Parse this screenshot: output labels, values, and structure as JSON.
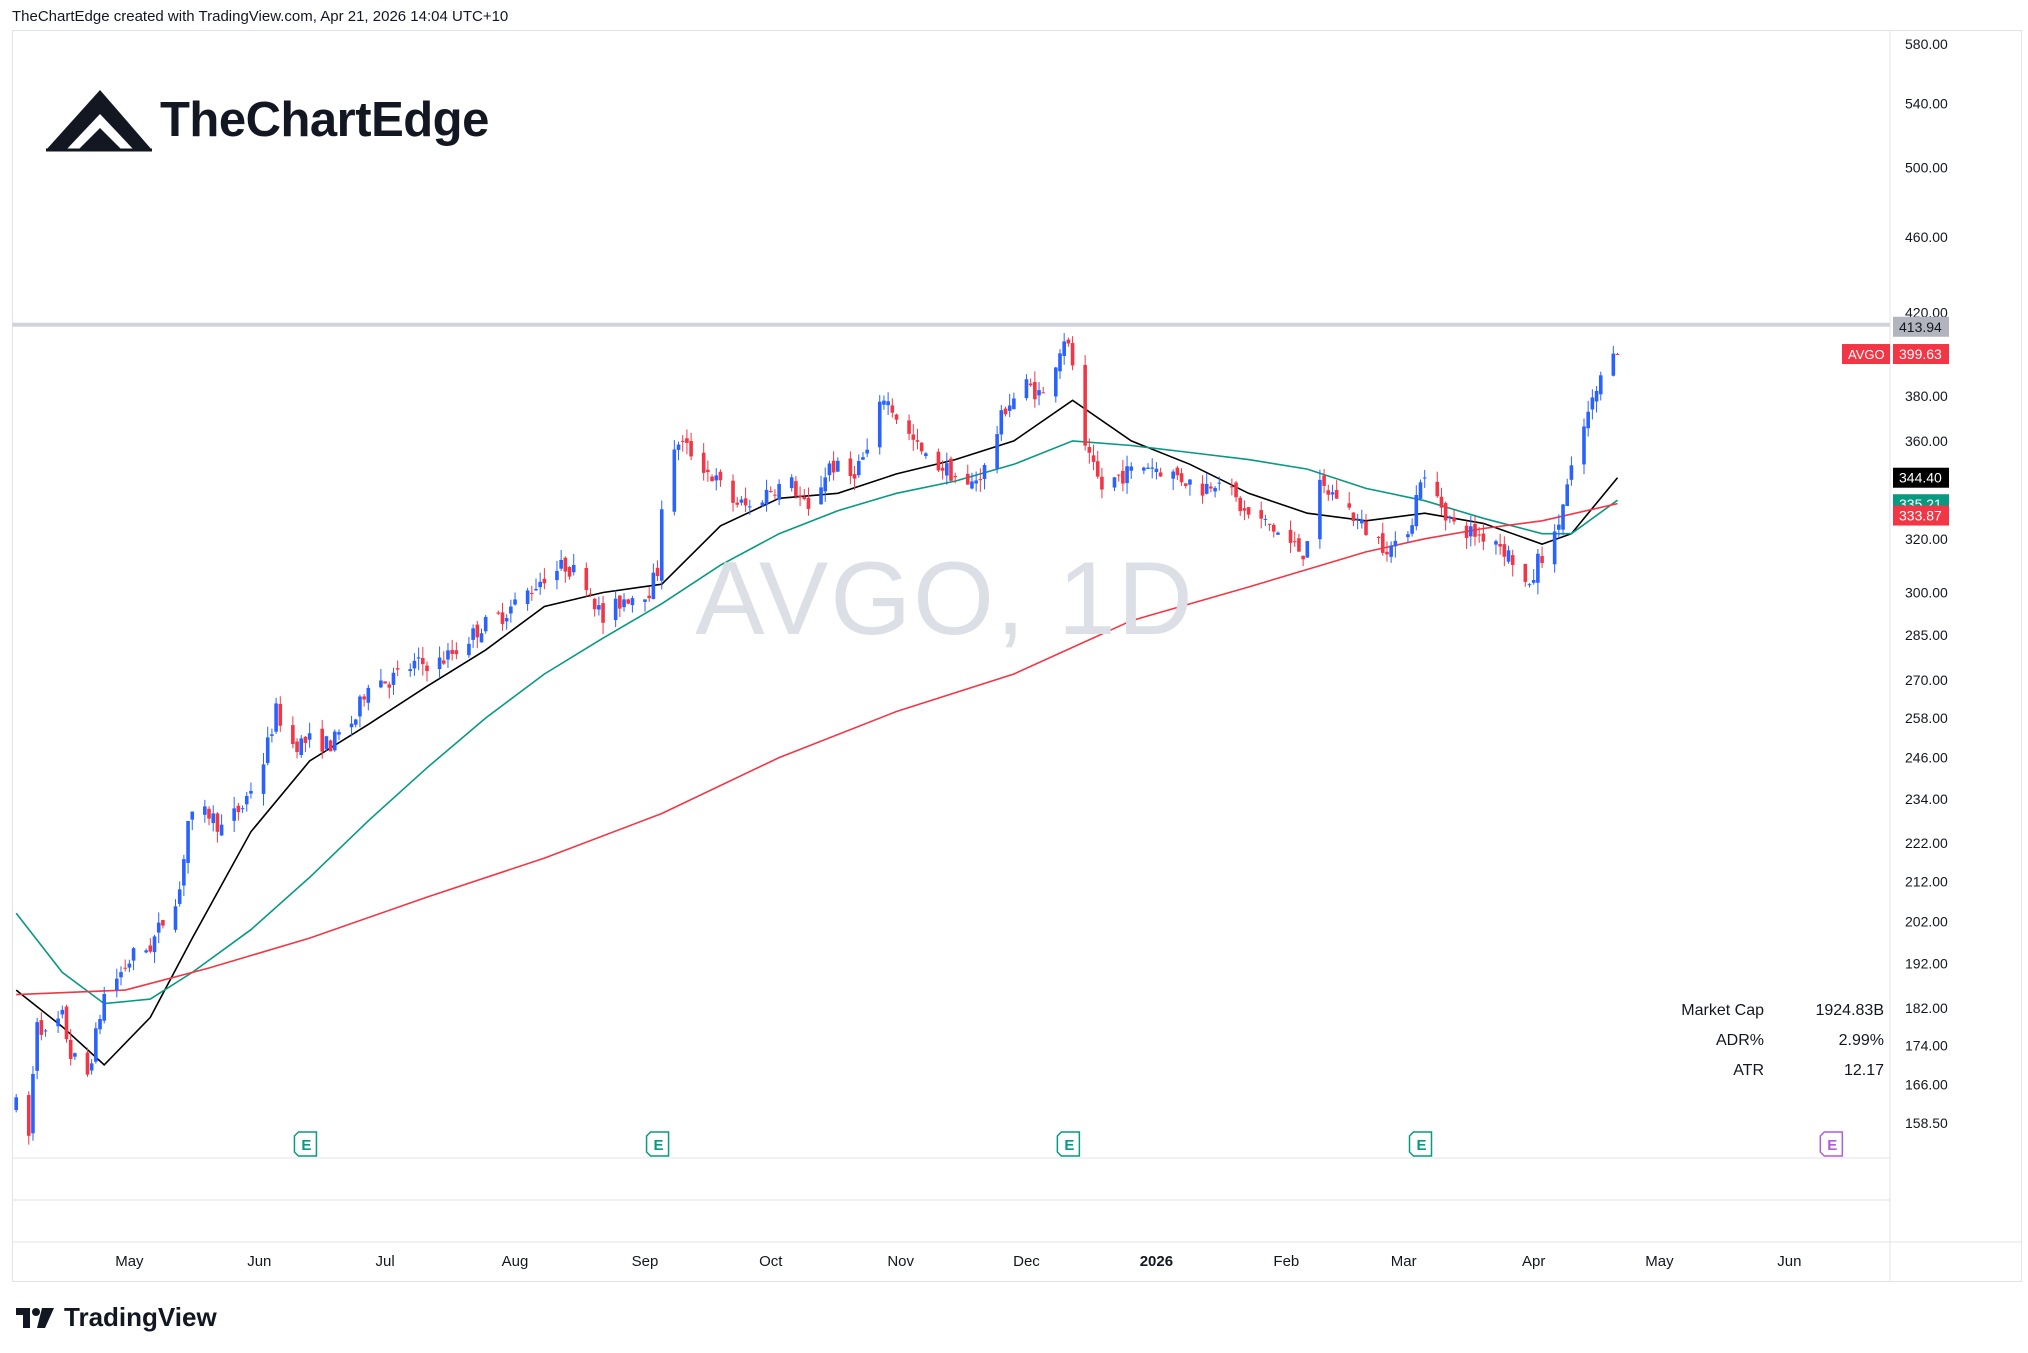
{
  "header": {
    "attribution": "TheChartEdge created with TradingView.com, Apr 21, 2026 14:04 UTC+10"
  },
  "brand": {
    "name": "TheChartEdge"
  },
  "watermark": {
    "text": "AVGO, 1D"
  },
  "footer": {
    "name": "TradingView"
  },
  "stats": [
    {
      "label": "Market Cap",
      "value": "1924.83B"
    },
    {
      "label": "ADR%",
      "value": "2.99%"
    },
    {
      "label": "ATR",
      "value": "12.17"
    }
  ],
  "price_axis": {
    "scale": "log",
    "ticks": [
      "580.00",
      "540.00",
      "500.00",
      "460.00",
      "420.00",
      "380.00",
      "360.00",
      "320.00",
      "300.00",
      "285.00",
      "270.00",
      "258.00",
      "246.00",
      "234.00",
      "222.00",
      "212.00",
      "202.00",
      "192.00",
      "182.00",
      "174.00",
      "166.00",
      "158.50"
    ]
  },
  "time_axis": {
    "labels": [
      "May",
      "Jun",
      "Jul",
      "Aug",
      "Sep",
      "Oct",
      "Nov",
      "Dec",
      "2026",
      "Feb",
      "Mar",
      "Apr",
      "May",
      "Jun"
    ],
    "bold_label": "2026"
  },
  "price_labels": [
    {
      "name": "resistance-level",
      "value": "413.94",
      "color": "#b2b5be"
    },
    {
      "name": "last-price",
      "tag": "AVGO",
      "value": "399.63",
      "color": "#f23645"
    },
    {
      "name": "ma-short",
      "value": "344.40",
      "color": "#000000"
    },
    {
      "name": "ma-mid",
      "value": "335.21",
      "color": "#089981"
    },
    {
      "name": "ma-long",
      "value": "333.87",
      "color": "#f23645"
    }
  ],
  "earnings_markers": {
    "label": "E",
    "dates": [
      "2025-06-12",
      "2025-09-04",
      "2025-12-11",
      "2026-03-05"
    ],
    "upcoming": "2026-06-11"
  },
  "colors": {
    "up": "#2962ff",
    "down": "#f23645",
    "ma_short": "#000000",
    "ma_mid": "#089981",
    "ma_long": "#f23645",
    "upcoming_earnings": "#b35cd6",
    "past_earnings": "#089981"
  },
  "chart_data": {
    "type": "candlestick",
    "symbol": "AVGO",
    "interval": "1D",
    "y_scale": "log",
    "ylim": [
      152,
      590
    ],
    "xlim": [
      "2025-04-03",
      "2026-06-25"
    ],
    "horizontal_line": 413.94,
    "last_price": 399.63,
    "anchors": [
      [
        "2025-04-04",
        162
      ],
      [
        "2025-04-07",
        156
      ],
      [
        "2025-04-09",
        180
      ],
      [
        "2025-04-11",
        176
      ],
      [
        "2025-04-15",
        180
      ],
      [
        "2025-04-17",
        172
      ],
      [
        "2025-04-21",
        168
      ],
      [
        "2025-04-23",
        176
      ],
      [
        "2025-04-25",
        185
      ],
      [
        "2025-04-29",
        190
      ],
      [
        "2025-05-02",
        194
      ],
      [
        "2025-05-06",
        196
      ],
      [
        "2025-05-09",
        202
      ],
      [
        "2025-05-13",
        210
      ],
      [
        "2025-05-15",
        228
      ],
      [
        "2025-05-20",
        230
      ],
      [
        "2025-05-23",
        226
      ],
      [
        "2025-05-28",
        232
      ],
      [
        "2025-06-02",
        245
      ],
      [
        "2025-06-05",
        260
      ],
      [
        "2025-06-09",
        250
      ],
      [
        "2025-06-13",
        251
      ],
      [
        "2025-06-18",
        250
      ],
      [
        "2025-06-24",
        258
      ],
      [
        "2025-06-27",
        270
      ],
      [
        "2025-07-02",
        270
      ],
      [
        "2025-07-08",
        275
      ],
      [
        "2025-07-14",
        276
      ],
      [
        "2025-07-18",
        280
      ],
      [
        "2025-07-24",
        288
      ],
      [
        "2025-07-29",
        292
      ],
      [
        "2025-08-04",
        300
      ],
      [
        "2025-08-08",
        306
      ],
      [
        "2025-08-13",
        310
      ],
      [
        "2025-08-18",
        304
      ],
      [
        "2025-08-22",
        290
      ],
      [
        "2025-08-27",
        298
      ],
      [
        "2025-09-02",
        301
      ],
      [
        "2025-09-04",
        308
      ],
      [
        "2025-09-05",
        334
      ],
      [
        "2025-09-09",
        360
      ],
      [
        "2025-09-12",
        355
      ],
      [
        "2025-09-17",
        345
      ],
      [
        "2025-09-22",
        335
      ],
      [
        "2025-09-26",
        332
      ],
      [
        "2025-10-01",
        340
      ],
      [
        "2025-10-06",
        342
      ],
      [
        "2025-10-10",
        330
      ],
      [
        "2025-10-15",
        350
      ],
      [
        "2025-10-20",
        345
      ],
      [
        "2025-10-24",
        355
      ],
      [
        "2025-10-28",
        380
      ],
      [
        "2025-11-03",
        362
      ],
      [
        "2025-11-07",
        352
      ],
      [
        "2025-11-12",
        348
      ],
      [
        "2025-11-17",
        340
      ],
      [
        "2025-11-21",
        348
      ],
      [
        "2025-11-26",
        375
      ],
      [
        "2025-12-01",
        385
      ],
      [
        "2025-12-05",
        380
      ],
      [
        "2025-12-10",
        408
      ],
      [
        "2025-12-12",
        395
      ],
      [
        "2025-12-15",
        355
      ],
      [
        "2025-12-19",
        340
      ],
      [
        "2025-12-23",
        345
      ],
      [
        "2025-12-30",
        350
      ],
      [
        "2026-01-06",
        345
      ],
      [
        "2026-01-12",
        340
      ],
      [
        "2026-01-16",
        345
      ],
      [
        "2026-01-22",
        330
      ],
      [
        "2026-01-28",
        325
      ],
      [
        "2026-02-02",
        318
      ],
      [
        "2026-02-05",
        315
      ],
      [
        "2026-02-09",
        340
      ],
      [
        "2026-02-13",
        337
      ],
      [
        "2026-02-19",
        325
      ],
      [
        "2026-02-24",
        318
      ],
      [
        "2026-02-27",
        316
      ],
      [
        "2026-03-03",
        328
      ],
      [
        "2026-03-05",
        345
      ],
      [
        "2026-03-09",
        336
      ],
      [
        "2026-03-13",
        325
      ],
      [
        "2026-03-18",
        322
      ],
      [
        "2026-03-23",
        320
      ],
      [
        "2026-03-27",
        312
      ],
      [
        "2026-03-31",
        300
      ],
      [
        "2026-04-02",
        312
      ],
      [
        "2026-04-06",
        320
      ],
      [
        "2026-04-09",
        340
      ],
      [
        "2026-04-13",
        366
      ],
      [
        "2026-04-16",
        382
      ],
      [
        "2026-04-20",
        404
      ],
      [
        "2026-04-21",
        399.63
      ]
    ],
    "moving_averages": [
      {
        "name": "ma-short",
        "color": "#000000",
        "points": [
          [
            "2025-04-04",
            186
          ],
          [
            "2025-04-15",
            178
          ],
          [
            "2025-04-25",
            170
          ],
          [
            "2025-05-06",
            180
          ],
          [
            "2025-05-16",
            198
          ],
          [
            "2025-05-30",
            225
          ],
          [
            "2025-06-13",
            245
          ],
          [
            "2025-06-27",
            256
          ],
          [
            "2025-07-11",
            268
          ],
          [
            "2025-07-25",
            280
          ],
          [
            "2025-08-08",
            295
          ],
          [
            "2025-08-22",
            300
          ],
          [
            "2025-09-05",
            303
          ],
          [
            "2025-09-19",
            325
          ],
          [
            "2025-10-03",
            336
          ],
          [
            "2025-10-17",
            338
          ],
          [
            "2025-10-31",
            346
          ],
          [
            "2025-11-14",
            352
          ],
          [
            "2025-11-28",
            360
          ],
          [
            "2025-12-12",
            378
          ],
          [
            "2025-12-26",
            360
          ],
          [
            "2026-01-09",
            350
          ],
          [
            "2026-01-23",
            338
          ],
          [
            "2026-02-06",
            330
          ],
          [
            "2026-02-20",
            327
          ],
          [
            "2026-03-06",
            330
          ],
          [
            "2026-03-20",
            326
          ],
          [
            "2026-04-03",
            318
          ],
          [
            "2026-04-10",
            322
          ],
          [
            "2026-04-21",
            344.4
          ]
        ]
      },
      {
        "name": "ma-mid",
        "color": "#089981",
        "points": [
          [
            "2025-04-04",
            204
          ],
          [
            "2025-04-15",
            190
          ],
          [
            "2025-04-25",
            183
          ],
          [
            "2025-05-06",
            184
          ],
          [
            "2025-05-16",
            190
          ],
          [
            "2025-05-30",
            200
          ],
          [
            "2025-06-13",
            213
          ],
          [
            "2025-06-27",
            228
          ],
          [
            "2025-07-11",
            243
          ],
          [
            "2025-07-25",
            258
          ],
          [
            "2025-08-08",
            272
          ],
          [
            "2025-08-22",
            284
          ],
          [
            "2025-09-05",
            296
          ],
          [
            "2025-09-19",
            310
          ],
          [
            "2025-10-03",
            322
          ],
          [
            "2025-10-17",
            331
          ],
          [
            "2025-10-31",
            338
          ],
          [
            "2025-11-14",
            343
          ],
          [
            "2025-11-28",
            350
          ],
          [
            "2025-12-12",
            360
          ],
          [
            "2025-12-26",
            358
          ],
          [
            "2026-01-09",
            355
          ],
          [
            "2026-01-23",
            352
          ],
          [
            "2026-02-06",
            348
          ],
          [
            "2026-02-20",
            340
          ],
          [
            "2026-03-06",
            335
          ],
          [
            "2026-03-20",
            328
          ],
          [
            "2026-04-03",
            322
          ],
          [
            "2026-04-10",
            322
          ],
          [
            "2026-04-21",
            335.21
          ]
        ]
      },
      {
        "name": "ma-long",
        "color": "#f23645",
        "points": [
          [
            "2025-04-04",
            185
          ],
          [
            "2025-04-30",
            186
          ],
          [
            "2025-05-20",
            191
          ],
          [
            "2025-06-13",
            198
          ],
          [
            "2025-07-11",
            208
          ],
          [
            "2025-08-08",
            218
          ],
          [
            "2025-09-05",
            230
          ],
          [
            "2025-10-03",
            246
          ],
          [
            "2025-10-31",
            260
          ],
          [
            "2025-11-28",
            272
          ],
          [
            "2025-12-26",
            290
          ],
          [
            "2026-01-23",
            302
          ],
          [
            "2026-02-20",
            315
          ],
          [
            "2026-03-06",
            320
          ],
          [
            "2026-03-20",
            324
          ],
          [
            "2026-04-03",
            327
          ],
          [
            "2026-04-21",
            333.87
          ]
        ]
      }
    ]
  }
}
